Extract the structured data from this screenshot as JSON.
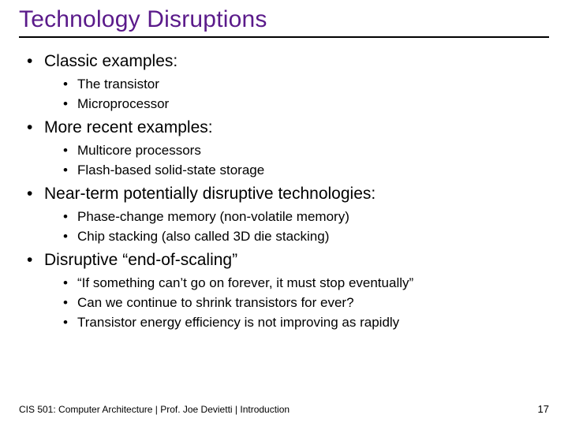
{
  "title": "Technology Disruptions",
  "title_color": "#5a1a8a",
  "title_fontsize": 30,
  "title_underline_color": "#000000",
  "body_fontsize_l1": 21,
  "body_fontsize_l2": 17,
  "text_color": "#000000",
  "background_color": "#ffffff",
  "font_family": "Verdana",
  "sections": [
    {
      "heading": "Classic examples:",
      "items": [
        "The transistor",
        "Microprocessor"
      ]
    },
    {
      "heading": "More recent examples:",
      "items": [
        "Multicore processors",
        "Flash-based solid-state storage"
      ]
    },
    {
      "heading": "Near-term potentially disruptive technologies:",
      "items": [
        "Phase-change memory (non-volatile memory)",
        "Chip stacking (also called 3D die stacking)"
      ]
    },
    {
      "heading": "Disruptive “end-of-scaling”",
      "items": [
        "“If something can’t go on forever, it must stop eventually”",
        "Can we continue to shrink transistors for ever?",
        "Transistor energy efficiency is not improving as rapidly"
      ]
    }
  ],
  "footer": {
    "left": "CIS 501: Computer Architecture  |  Prof. Joe Devietti  |  Introduction",
    "page_number": "17",
    "fontsize": 12
  }
}
